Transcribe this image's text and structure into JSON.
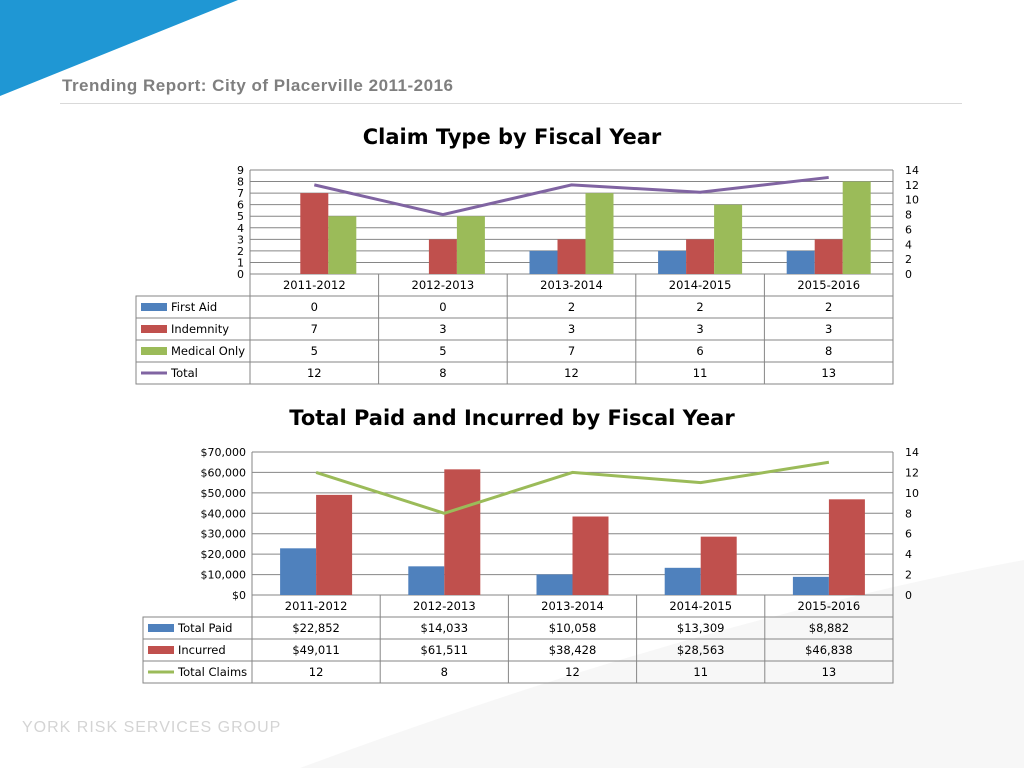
{
  "header": {
    "title": "Trending Report: City of Placerville 2011-2016"
  },
  "footer": {
    "brand": "YORK RISK SERVICES GROUP"
  },
  "colors": {
    "blue": "#4f81bd",
    "red": "#c0504d",
    "green": "#9bbb59",
    "purple": "#8064a2",
    "corner": "#1f97d4"
  },
  "chart_data": [
    {
      "type": "bar",
      "title": "Claim Type by Fiscal Year",
      "categories": [
        "2011-2012",
        "2012-2013",
        "2013-2014",
        "2014-2015",
        "2015-2016"
      ],
      "ylim": [
        0,
        9
      ],
      "y2lim": [
        0,
        14
      ],
      "yticks": [
        "0",
        "1",
        "2",
        "3",
        "4",
        "5",
        "6",
        "7",
        "8",
        "9"
      ],
      "y2ticks": [
        "0",
        "2",
        "4",
        "6",
        "8",
        "10",
        "12",
        "14"
      ],
      "series": [
        {
          "name": "First Aid",
          "kind": "bar",
          "color": "#4f81bd",
          "values": [
            0,
            0,
            2,
            2,
            2
          ],
          "labels": [
            "0",
            "0",
            "2",
            "2",
            "2"
          ]
        },
        {
          "name": "Indemnity",
          "kind": "bar",
          "color": "#c0504d",
          "values": [
            7,
            3,
            3,
            3,
            3
          ],
          "labels": [
            "7",
            "3",
            "3",
            "3",
            "3"
          ]
        },
        {
          "name": "Medical Only",
          "kind": "bar",
          "color": "#9bbb59",
          "values": [
            5,
            5,
            7,
            6,
            8
          ],
          "labels": [
            "5",
            "5",
            "7",
            "6",
            "8"
          ]
        },
        {
          "name": "Total",
          "kind": "line",
          "axis": "secondary",
          "color": "#8064a2",
          "values": [
            12,
            8,
            12,
            11,
            13
          ],
          "labels": [
            "12",
            "8",
            "12",
            "11",
            "13"
          ]
        }
      ],
      "grid": true,
      "legend": "data-table"
    },
    {
      "type": "bar",
      "title": "Total Paid and Incurred by Fiscal Year",
      "categories": [
        "2011-2012",
        "2012-2013",
        "2013-2014",
        "2014-2015",
        "2015-2016"
      ],
      "ylim": [
        0,
        70000
      ],
      "y2lim": [
        0,
        14
      ],
      "yticks": [
        "$0",
        "$10,000",
        "$20,000",
        "$30,000",
        "$40,000",
        "$50,000",
        "$60,000",
        "$70,000"
      ],
      "y2ticks": [
        "0",
        "2",
        "4",
        "6",
        "8",
        "10",
        "12",
        "14"
      ],
      "series": [
        {
          "name": "Total Paid",
          "kind": "bar",
          "color": "#4f81bd",
          "values": [
            22852,
            14033,
            10058,
            13309,
            8882
          ],
          "labels": [
            "$22,852",
            "$14,033",
            "$10,058",
            "$13,309",
            "$8,882"
          ]
        },
        {
          "name": "Incurred",
          "kind": "bar",
          "color": "#c0504d",
          "values": [
            49011,
            61511,
            38428,
            28563,
            46838
          ],
          "labels": [
            "$49,011",
            "$61,511",
            "$38,428",
            "$28,563",
            "$46,838"
          ]
        },
        {
          "name": "Total Claims",
          "kind": "line",
          "axis": "secondary",
          "color": "#9bbb59",
          "values": [
            12,
            8,
            12,
            11,
            13
          ],
          "labels": [
            "12",
            "8",
            "12",
            "11",
            "13"
          ]
        }
      ],
      "grid": true,
      "legend": "data-table"
    }
  ]
}
